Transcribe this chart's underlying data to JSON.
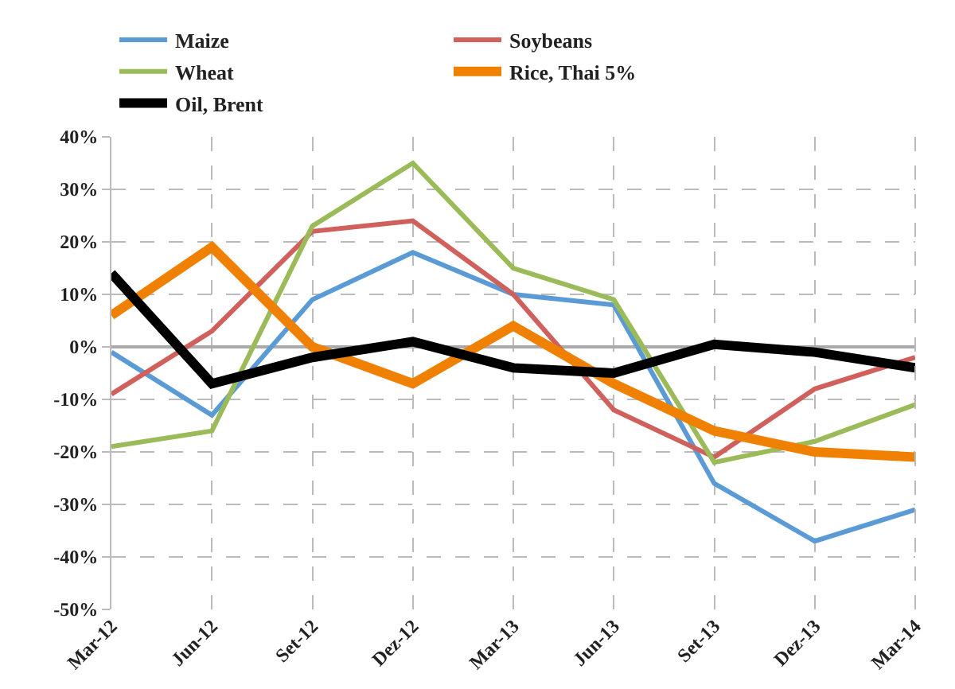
{
  "chart_data": {
    "type": "line",
    "categories": [
      "Mar-12",
      "Jun-12",
      "Set-12",
      "Dez-12",
      "Mar-13",
      "Jun-13",
      "Set-13",
      "Dez-13",
      "Mar-14"
    ],
    "series": [
      {
        "name": "Maize",
        "color": "#5b9bd5",
        "values": [
          -1,
          -13,
          9,
          18,
          10,
          8,
          -26,
          -37,
          -31
        ]
      },
      {
        "name": "Soybeans",
        "color": "#d0605b",
        "values": [
          -9,
          3,
          22,
          24,
          10,
          -12,
          -21,
          -8,
          -2
        ]
      },
      {
        "name": "Wheat",
        "color": "#9bbb59",
        "values": [
          -19,
          -16,
          23,
          35,
          15,
          9,
          -22,
          -18,
          -11
        ]
      },
      {
        "name": "Rice, Thai 5%",
        "color": "#f08000",
        "values": [
          6,
          19,
          0,
          -7,
          4,
          -7,
          -16,
          -20,
          -21
        ]
      },
      {
        "name": "Oil, Brent",
        "color": "#000000",
        "values": [
          14,
          -7,
          -2,
          1,
          -4,
          -5,
          0.5,
          -1,
          -4
        ]
      }
    ],
    "ylim": [
      -50,
      40
    ],
    "yticks": [
      {
        "value": -50,
        "label": "-50%"
      },
      {
        "value": -40,
        "label": "-40%"
      },
      {
        "value": -30,
        "label": "-30%"
      },
      {
        "value": -20,
        "label": "-20%"
      },
      {
        "value": -10,
        "label": "-10%"
      },
      {
        "value": 0,
        "label": "0%"
      },
      {
        "value": 10,
        "label": "10%"
      },
      {
        "value": 20,
        "label": "20%"
      },
      {
        "value": 30,
        "label": "30%"
      },
      {
        "value": 40,
        "label": "40%"
      }
    ],
    "grid": true,
    "legend": "top",
    "marker": "none",
    "line_style": "solid"
  }
}
